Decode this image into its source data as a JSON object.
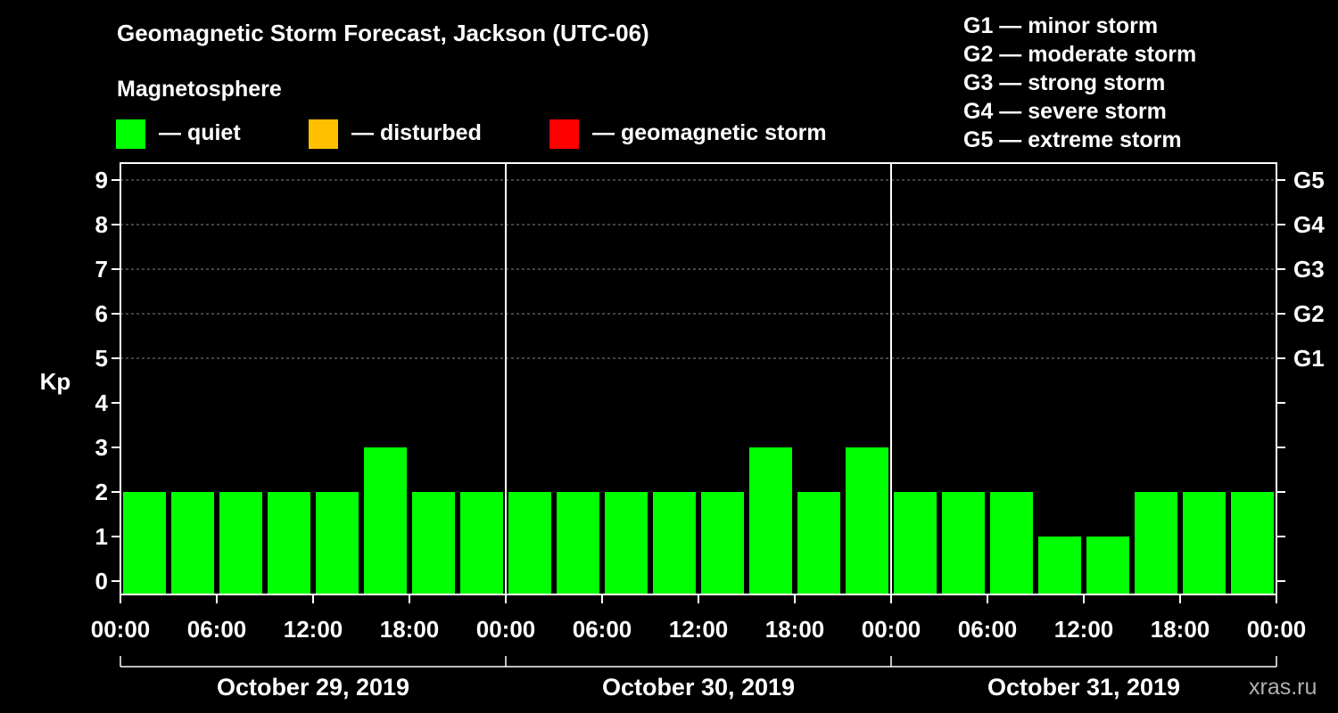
{
  "title": "Geomagnetic Storm Forecast, Jackson (UTC-06)",
  "subtitle": "Magnetosphere",
  "legend": [
    {
      "label": "— quiet",
      "color": "#00ff00"
    },
    {
      "label": "— disturbed",
      "color": "#ffc000"
    },
    {
      "label": "— geomagnetic storm",
      "color": "#ff0000"
    }
  ],
  "storm_levels": [
    "G1 — minor storm",
    "G2 — moderate storm",
    "G3 — strong storm",
    "G4 — severe storm",
    "G5 — extreme storm"
  ],
  "watermark": "xras.ru",
  "colors": {
    "quiet": "#00ff00",
    "disturbed": "#ffc000",
    "storm": "#ff0000"
  },
  "chart_data": {
    "type": "bar",
    "ylabel": "Kp",
    "ylim": [
      0,
      9
    ],
    "yticks": [
      0,
      1,
      2,
      3,
      4,
      5,
      6,
      7,
      8,
      9
    ],
    "right_ticks": [
      {
        "value": 5,
        "label": "G1"
      },
      {
        "value": 6,
        "label": "G2"
      },
      {
        "value": 7,
        "label": "G3"
      },
      {
        "value": 8,
        "label": "G4"
      },
      {
        "value": 9,
        "label": "G5"
      }
    ],
    "xtick_labels": [
      "00:00",
      "06:00",
      "12:00",
      "18:00",
      "00:00",
      "06:00",
      "12:00",
      "18:00",
      "00:00",
      "06:00",
      "12:00",
      "18:00",
      "00:00"
    ],
    "days": [
      "October 29, 2019",
      "October 30, 2019",
      "October 31, 2019"
    ],
    "bars_per_day": 8,
    "values": [
      2,
      2,
      2,
      2,
      2,
      3,
      2,
      2,
      2,
      2,
      2,
      2,
      2,
      3,
      2,
      3,
      2,
      2,
      2,
      1,
      1,
      2,
      2,
      2
    ],
    "categories": [
      "quiet",
      "quiet",
      "quiet",
      "quiet",
      "quiet",
      "quiet",
      "quiet",
      "quiet",
      "quiet",
      "quiet",
      "quiet",
      "quiet",
      "quiet",
      "quiet",
      "quiet",
      "quiet",
      "quiet",
      "quiet",
      "quiet",
      "quiet",
      "quiet",
      "quiet",
      "quiet",
      "quiet"
    ]
  }
}
